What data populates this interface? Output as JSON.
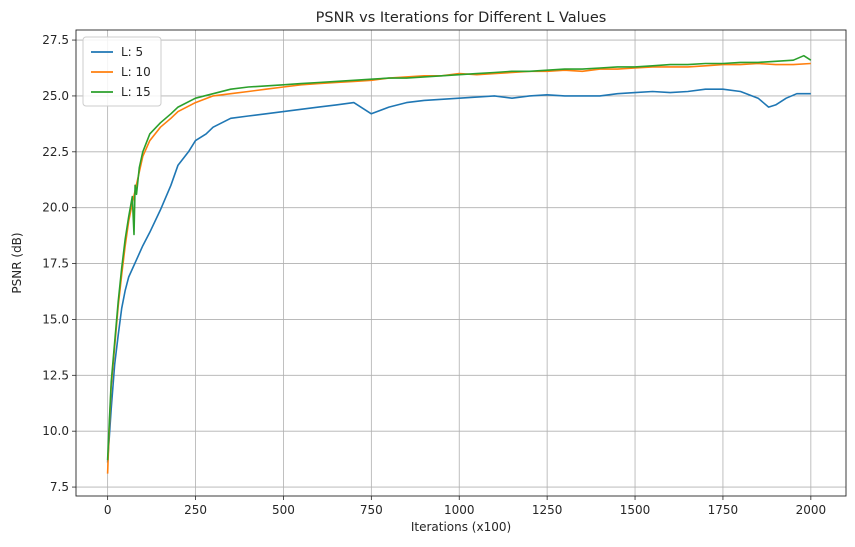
{
  "chart_data": {
    "type": "line",
    "title": "PSNR vs Iterations for Different L Values",
    "xlabel": "Iterations (x100)",
    "ylabel": "PSNR (dB)",
    "xlim": [
      -90,
      2100
    ],
    "ylim": [
      7.1,
      27.95
    ],
    "xticks": [
      0,
      250,
      500,
      750,
      1000,
      1250,
      1500,
      1750,
      2000
    ],
    "yticks": [
      7.5,
      10.0,
      12.5,
      15.0,
      17.5,
      20.0,
      22.5,
      25.0,
      27.5
    ],
    "xtick_labels": [
      "0",
      "250",
      "500",
      "750",
      "1000",
      "1250",
      "1500",
      "1750",
      "2000"
    ],
    "ytick_labels": [
      "7.5",
      "10.0",
      "12.5",
      "15.0",
      "17.5",
      "20.0",
      "22.5",
      "25.0",
      "27.5"
    ],
    "grid": true,
    "legend_position": "top-left",
    "series": [
      {
        "name": "L: 5",
        "color": "#1f77b4",
        "x": [
          0,
          5,
          10,
          20,
          30,
          40,
          50,
          60,
          80,
          100,
          120,
          150,
          180,
          200,
          230,
          250,
          280,
          300,
          350,
          400,
          450,
          500,
          550,
          600,
          650,
          700,
          750,
          800,
          850,
          900,
          950,
          1000,
          1050,
          1100,
          1150,
          1200,
          1250,
          1300,
          1350,
          1400,
          1450,
          1500,
          1550,
          1600,
          1650,
          1700,
          1750,
          1800,
          1850,
          1880,
          1900,
          1930,
          1960,
          2000
        ],
        "y": [
          8.6,
          9.8,
          11.0,
          13.0,
          14.3,
          15.5,
          16.3,
          16.9,
          17.6,
          18.3,
          18.9,
          19.9,
          21.0,
          21.9,
          22.5,
          23.0,
          23.3,
          23.6,
          24.0,
          24.1,
          24.2,
          24.3,
          24.4,
          24.5,
          24.6,
          24.7,
          24.2,
          24.5,
          24.7,
          24.8,
          24.85,
          24.9,
          24.95,
          25.0,
          24.9,
          25.0,
          25.05,
          25.0,
          25.0,
          25.0,
          25.1,
          25.15,
          25.2,
          25.15,
          25.2,
          25.3,
          25.3,
          25.2,
          24.9,
          24.5,
          24.6,
          24.9,
          25.1,
          25.1
        ]
      },
      {
        "name": "L: 10",
        "color": "#ff7f0e",
        "x": [
          0,
          5,
          10,
          20,
          30,
          40,
          50,
          60,
          70,
          80,
          90,
          100,
          120,
          150,
          180,
          200,
          250,
          300,
          350,
          400,
          450,
          500,
          550,
          600,
          650,
          700,
          750,
          800,
          850,
          900,
          950,
          1000,
          1050,
          1100,
          1150,
          1200,
          1250,
          1300,
          1350,
          1400,
          1450,
          1500,
          1550,
          1600,
          1650,
          1700,
          1750,
          1800,
          1850,
          1900,
          1950,
          2000
        ],
        "y": [
          8.1,
          10.3,
          12.0,
          13.8,
          15.6,
          17.0,
          18.3,
          19.4,
          20.2,
          20.9,
          21.6,
          22.3,
          23.0,
          23.6,
          24.0,
          24.3,
          24.7,
          25.0,
          25.1,
          25.2,
          25.3,
          25.4,
          25.5,
          25.55,
          25.6,
          25.65,
          25.7,
          25.8,
          25.85,
          25.9,
          25.9,
          26.0,
          25.95,
          26.0,
          26.05,
          26.1,
          26.1,
          26.15,
          26.1,
          26.2,
          26.2,
          26.25,
          26.3,
          26.3,
          26.3,
          26.35,
          26.4,
          26.4,
          26.45,
          26.4,
          26.4,
          26.45
        ]
      },
      {
        "name": "L: 15",
        "color": "#2ca02c",
        "x": [
          0,
          5,
          10,
          20,
          30,
          40,
          50,
          60,
          70,
          75,
          78,
          82,
          90,
          100,
          120,
          150,
          180,
          200,
          250,
          300,
          350,
          400,
          450,
          500,
          550,
          600,
          650,
          700,
          750,
          800,
          850,
          900,
          950,
          1000,
          1050,
          1100,
          1150,
          1200,
          1250,
          1300,
          1350,
          1400,
          1450,
          1500,
          1550,
          1600,
          1650,
          1700,
          1750,
          1800,
          1850,
          1900,
          1950,
          1980,
          2000
        ],
        "y": [
          8.7,
          10.5,
          12.2,
          14.0,
          15.8,
          17.3,
          18.6,
          19.6,
          20.5,
          18.8,
          21.0,
          20.6,
          21.8,
          22.5,
          23.3,
          23.8,
          24.2,
          24.5,
          24.9,
          25.1,
          25.3,
          25.4,
          25.45,
          25.5,
          25.55,
          25.6,
          25.65,
          25.7,
          25.75,
          25.8,
          25.8,
          25.85,
          25.9,
          25.95,
          26.0,
          26.05,
          26.1,
          26.1,
          26.15,
          26.2,
          26.2,
          26.25,
          26.3,
          26.3,
          26.35,
          26.4,
          26.4,
          26.45,
          26.45,
          26.5,
          26.5,
          26.55,
          26.6,
          26.8,
          26.6
        ]
      }
    ]
  }
}
